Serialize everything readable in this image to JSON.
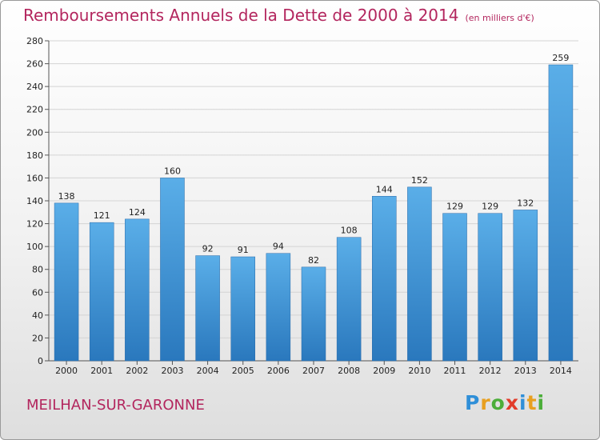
{
  "title": "Remboursements Annuels de la Dette de 2000 à 2014",
  "unit": "(en milliers d'€)",
  "commune": "MEILHAN-SUR-GARONNE",
  "logo": [
    "P",
    "r",
    "o",
    "x",
    "i",
    "t",
    "i"
  ],
  "colors": {
    "title": "#b3265e",
    "bar_light": "#5aaee8",
    "bar_dark": "#2a78bd",
    "logo": [
      "#2f8fd8",
      "#e8a020",
      "#4cae3a",
      "#e23c2a",
      "#2f8fd8",
      "#e8a020",
      "#4cae3a"
    ]
  },
  "chart_data": {
    "type": "bar",
    "categories": [
      "2000",
      "2001",
      "2002",
      "2003",
      "2004",
      "2005",
      "2006",
      "2007",
      "2008",
      "2009",
      "2010",
      "2011",
      "2012",
      "2013",
      "2014"
    ],
    "values": [
      138,
      121,
      124,
      160,
      92,
      91,
      94,
      82,
      108,
      144,
      152,
      129,
      129,
      132,
      259
    ],
    "ylim": [
      0,
      280
    ],
    "yticks": [
      0,
      20,
      40,
      60,
      80,
      100,
      120,
      140,
      160,
      180,
      200,
      220,
      240,
      260,
      280
    ],
    "grid": true
  }
}
